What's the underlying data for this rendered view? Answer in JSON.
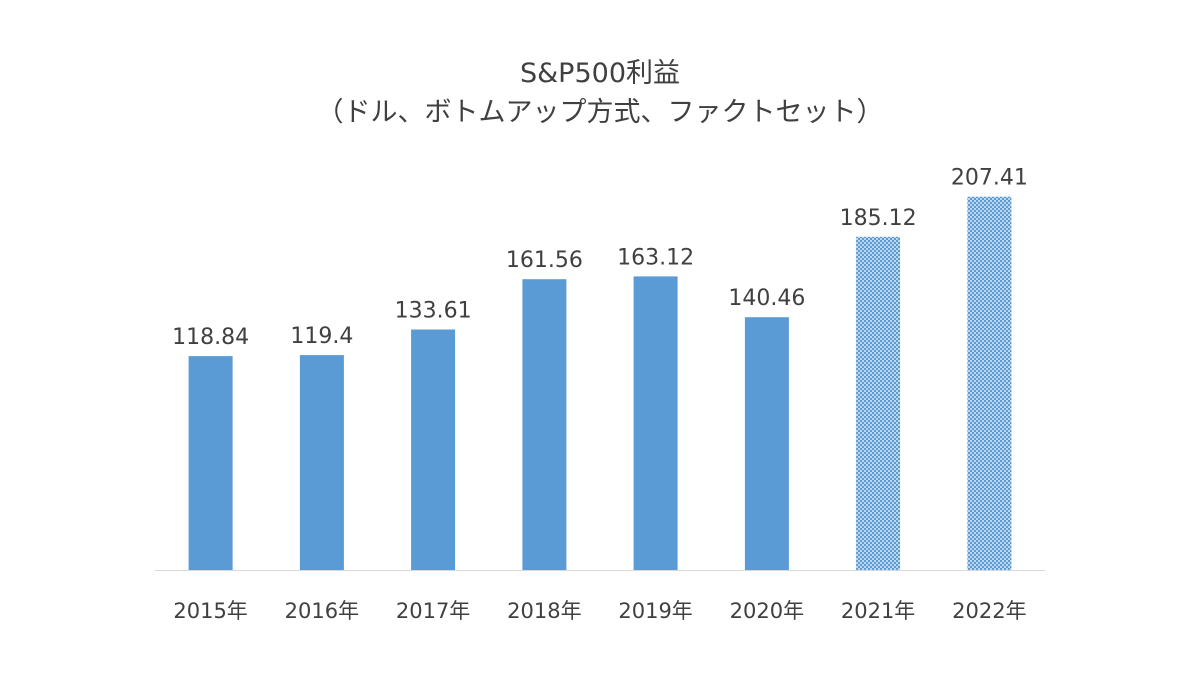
{
  "chart_data": {
    "type": "bar",
    "title": "S&P500利益",
    "subtitle": "（ドル、ボトムアップ方式、ファクトセット）",
    "xlabel": "",
    "ylabel": "",
    "categories": [
      "2015年",
      "2016年",
      "2017年",
      "2018年",
      "2019年",
      "2020年",
      "2021年",
      "2022年"
    ],
    "series": [
      {
        "values": [
          118.84,
          119.4,
          133.61,
          161.56,
          163.12,
          140.46,
          185.12,
          207.41
        ]
      }
    ],
    "data_labels": [
      "118.84",
      "119.4",
      "133.61",
      "161.56",
      "163.12",
      "140.46",
      "185.12",
      "207.41"
    ],
    "forecast_flags": [
      false,
      false,
      false,
      false,
      false,
      false,
      true,
      true
    ],
    "ylim": [
      0,
      250
    ],
    "grid": false,
    "legend": "none",
    "colors": {
      "bar": "#5b9bd5",
      "forecast_pattern_light": "#bdd7ee",
      "forecast_pattern_dark": "#5b9bd5",
      "axis_line": "#d9d9d9",
      "text": "#404040"
    }
  }
}
